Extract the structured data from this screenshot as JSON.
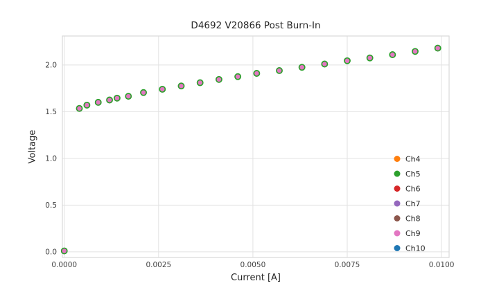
{
  "chart_data": {
    "type": "scatter",
    "title": "D4692 V20866 Post Burn-In",
    "xlabel": "Current [A]",
    "ylabel": "Voltage",
    "x": [
      0.0,
      0.0004,
      0.0006,
      0.0009,
      0.0012,
      0.0014,
      0.0017,
      0.0021,
      0.0026,
      0.0031,
      0.0036,
      0.0041,
      0.0046,
      0.0051,
      0.0057,
      0.0063,
      0.0069,
      0.0075,
      0.0081,
      0.0087,
      0.0093,
      0.0099
    ],
    "y_shared": [
      0.01,
      1.535,
      1.57,
      1.6,
      1.625,
      1.645,
      1.665,
      1.705,
      1.74,
      1.775,
      1.81,
      1.845,
      1.875,
      1.91,
      1.94,
      1.975,
      2.01,
      2.045,
      2.075,
      2.11,
      2.145,
      2.18
    ],
    "series": [
      {
        "name": "Ch4",
        "color": "#ff7f0e"
      },
      {
        "name": "Ch5",
        "color": "#2ca02c"
      },
      {
        "name": "Ch6",
        "color": "#d62728"
      },
      {
        "name": "Ch7",
        "color": "#9467bd"
      },
      {
        "name": "Ch8",
        "color": "#8c564b"
      },
      {
        "name": "Ch9",
        "color": "#e377c2"
      },
      {
        "name": "Ch10",
        "color": "#1f77b4"
      }
    ],
    "overlap_note": "All channels plot identical overlapping points; Ch9 (pink) is rendered on top with a Ch5 (green) edge peeking out",
    "top_series": "Ch9",
    "edge_series": "Ch5",
    "x_ticks": [
      "0.0000",
      "0.0025",
      "0.0050",
      "0.0075",
      "0.0100"
    ],
    "x_tick_values": [
      0.0,
      0.0025,
      0.005,
      0.0075,
      0.01
    ],
    "y_ticks": [
      "0.0",
      "0.5",
      "1.0",
      "1.5",
      "2.0"
    ],
    "y_tick_values": [
      0.0,
      0.5,
      1.0,
      1.5,
      2.0
    ],
    "xlim": [
      -5e-05,
      0.0102
    ],
    "ylim": [
      -0.06,
      2.31
    ],
    "grid": true,
    "grid_color": "#e2e2e2",
    "spine_color": "#d9d9d9",
    "plot_bg": "#ffffff",
    "legend_position": "lower right"
  }
}
